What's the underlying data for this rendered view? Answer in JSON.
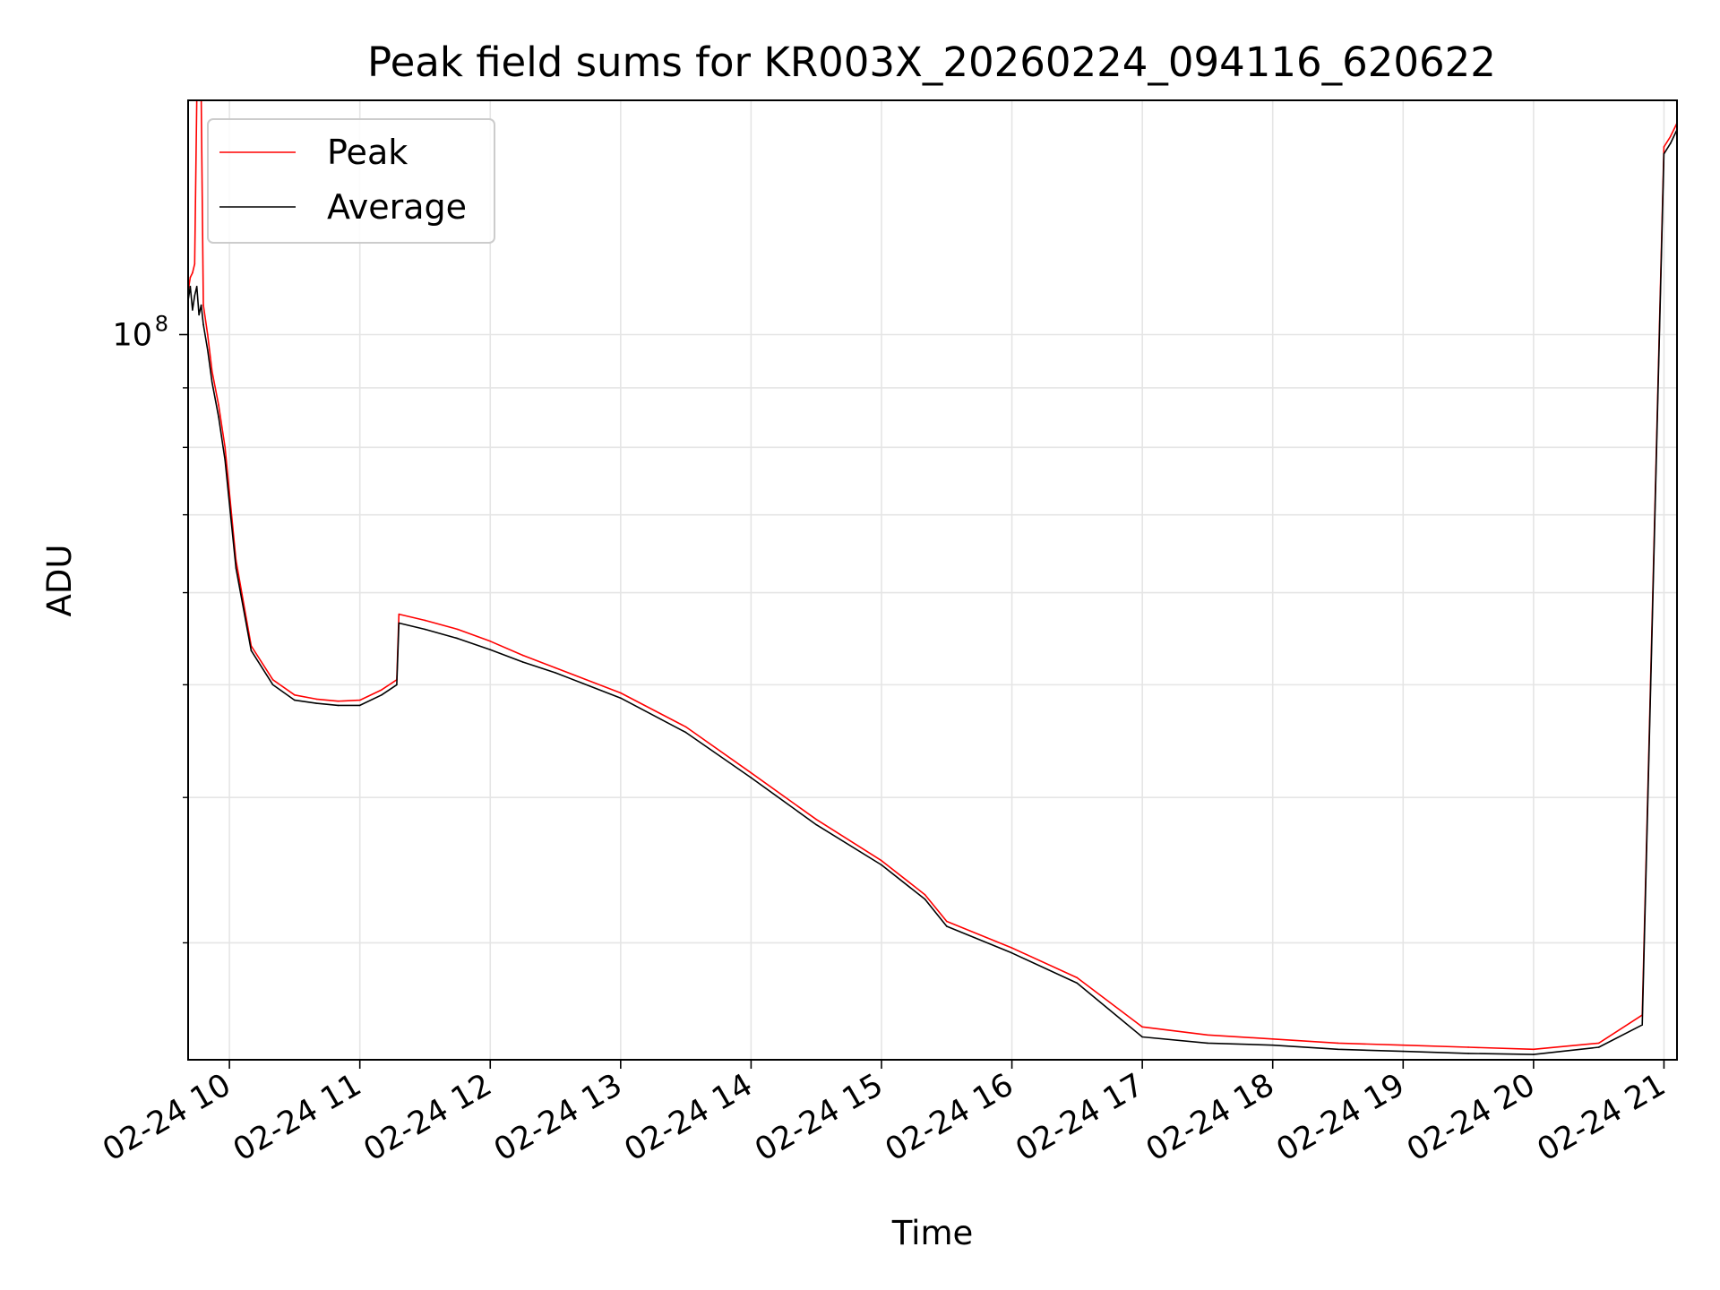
{
  "chart_data": {
    "type": "line",
    "title": "Peak field sums for KR003X_20260224_094116_620622",
    "xlabel": "Time",
    "ylabel": "ADU",
    "x_tick_labels": [
      "02-24 10",
      "02-24 11",
      "02-24 12",
      "02-24 13",
      "02-24 14",
      "02-24 15",
      "02-24 16",
      "02-24 17",
      "02-24 18",
      "02-24 19",
      "02-24 20",
      "02-24 21"
    ],
    "x_tick_times": [
      "2026-02-24T10:00",
      "2026-02-24T11:00",
      "2026-02-24T12:00",
      "2026-02-24T13:00",
      "2026-02-24T14:00",
      "2026-02-24T15:00",
      "2026-02-24T16:00",
      "2026-02-24T17:00",
      "2026-02-24T18:00",
      "2026-02-24T19:00",
      "2026-02-24T20:00",
      "2026-02-24T21:00"
    ],
    "xlim": [
      "2026-02-24T09:41",
      "2026-02-24T21:06"
    ],
    "y_scale": "log",
    "ylim": [
      23800000,
      159000000
    ],
    "y_major_tick_value": 100000000,
    "y_major_tick_label": {
      "base": "10",
      "exp": "8"
    },
    "y_minor_ticks": [
      30000000,
      40000000,
      50000000,
      60000000,
      70000000,
      80000000,
      90000000
    ],
    "grid": true,
    "legend_position": "upper-left",
    "series": [
      {
        "name": "Peak",
        "color": "#ff0000",
        "x": [
          "2026-02-24T09:41",
          "2026-02-24T09:42",
          "2026-02-24T09:43",
          "2026-02-24T09:44",
          "2026-02-24T09:45",
          "2026-02-24T09:46",
          "2026-02-24T09:47",
          "2026-02-24T09:48",
          "2026-02-24T09:50",
          "2026-02-24T09:52",
          "2026-02-24T09:55",
          "2026-02-24T09:58",
          "2026-02-24T10:03",
          "2026-02-24T10:10",
          "2026-02-24T10:20",
          "2026-02-24T10:30",
          "2026-02-24T10:40",
          "2026-02-24T10:50",
          "2026-02-24T11:00",
          "2026-02-24T11:10",
          "2026-02-24T11:17",
          "2026-02-24T11:18",
          "2026-02-24T11:30",
          "2026-02-24T11:45",
          "2026-02-24T12:00",
          "2026-02-24T12:15",
          "2026-02-24T12:30",
          "2026-02-24T13:00",
          "2026-02-24T13:30",
          "2026-02-24T14:00",
          "2026-02-24T14:30",
          "2026-02-24T15:00",
          "2026-02-24T15:20",
          "2026-02-24T15:30",
          "2026-02-24T16:00",
          "2026-02-24T16:30",
          "2026-02-24T17:00",
          "2026-02-24T17:30",
          "2026-02-24T18:00",
          "2026-02-24T18:30",
          "2026-02-24T19:00",
          "2026-02-24T19:30",
          "2026-02-24T20:00",
          "2026-02-24T20:30",
          "2026-02-24T20:50",
          "2026-02-24T21:00",
          "2026-02-24T21:03",
          "2026-02-24T21:06"
        ],
        "y": [
          109000000,
          112000000,
          113000000,
          115000000,
          160000000,
          160000000,
          160000000,
          106000000,
          100000000,
          93000000,
          87000000,
          80000000,
          64000000,
          54000000,
          50500000,
          49000000,
          48600000,
          48400000,
          48500000,
          49500000,
          50500000,
          57500000,
          56800000,
          55800000,
          54500000,
          53000000,
          51700000,
          49200000,
          46000000,
          42000000,
          38300000,
          35300000,
          33000000,
          31300000,
          29700000,
          28000000,
          25400000,
          25000000,
          24800000,
          24600000,
          24500000,
          24400000,
          24300000,
          24600000,
          26000000,
          145000000,
          148000000,
          152000000
        ]
      },
      {
        "name": "Average",
        "color": "#000000",
        "x": [
          "2026-02-24T09:41",
          "2026-02-24T09:42",
          "2026-02-24T09:43",
          "2026-02-24T09:44",
          "2026-02-24T09:45",
          "2026-02-24T09:46",
          "2026-02-24T09:47",
          "2026-02-24T09:48",
          "2026-02-24T09:50",
          "2026-02-24T09:52",
          "2026-02-24T09:55",
          "2026-02-24T09:58",
          "2026-02-24T10:03",
          "2026-02-24T10:10",
          "2026-02-24T10:20",
          "2026-02-24T10:30",
          "2026-02-24T10:40",
          "2026-02-24T10:50",
          "2026-02-24T11:00",
          "2026-02-24T11:10",
          "2026-02-24T11:17",
          "2026-02-24T11:18",
          "2026-02-24T11:30",
          "2026-02-24T11:45",
          "2026-02-24T12:00",
          "2026-02-24T12:15",
          "2026-02-24T12:30",
          "2026-02-24T13:00",
          "2026-02-24T13:30",
          "2026-02-24T14:00",
          "2026-02-24T14:30",
          "2026-02-24T15:00",
          "2026-02-24T15:20",
          "2026-02-24T15:30",
          "2026-02-24T16:00",
          "2026-02-24T16:30",
          "2026-02-24T17:00",
          "2026-02-24T17:30",
          "2026-02-24T18:00",
          "2026-02-24T18:30",
          "2026-02-24T19:00",
          "2026-02-24T19:30",
          "2026-02-24T20:00",
          "2026-02-24T20:30",
          "2026-02-24T20:50",
          "2026-02-24T21:00",
          "2026-02-24T21:03",
          "2026-02-24T21:06"
        ],
        "y": [
          107000000,
          110000000,
          105000000,
          108000000,
          110000000,
          104000000,
          106000000,
          102000000,
          97000000,
          91000000,
          85000000,
          78000000,
          63000000,
          53500000,
          50000000,
          48500000,
          48200000,
          48000000,
          48000000,
          49000000,
          50000000,
          56500000,
          55800000,
          54800000,
          53600000,
          52300000,
          51200000,
          48700000,
          45500000,
          41600000,
          37900000,
          35000000,
          32700000,
          31000000,
          29400000,
          27700000,
          24900000,
          24600000,
          24500000,
          24300000,
          24200000,
          24100000,
          24050000,
          24400000,
          25500000,
          143000000,
          146000000,
          150000000
        ]
      }
    ]
  }
}
